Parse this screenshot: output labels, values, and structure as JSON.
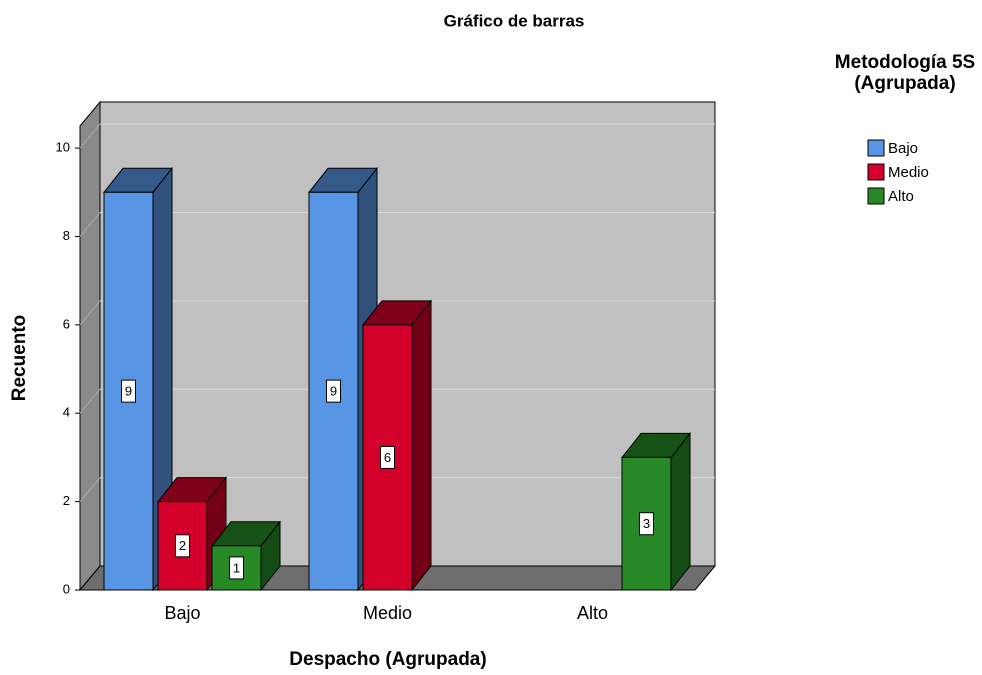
{
  "chart_data": {
    "type": "bar3d",
    "title": "Gráfico de barras",
    "x_label": "Despacho (Agrupada)",
    "y_label": "Recuento",
    "legend_title": "Metodología 5S (Agrupada)",
    "legend_position": "upper right",
    "categories": [
      "Bajo",
      "Medio",
      "Alto"
    ],
    "series": [
      {
        "name": "Bajo",
        "color": "#5895e4",
        "values": [
          9,
          9,
          null
        ]
      },
      {
        "name": "Medio",
        "color": "#d2002b",
        "values": [
          2,
          6,
          null
        ]
      },
      {
        "name": "Alto",
        "color": "#278a27",
        "values": [
          1,
          null,
          3
        ]
      }
    ],
    "ylim": [
      0,
      10.5
    ],
    "yticks": [
      0,
      2,
      4,
      6,
      8,
      10
    ],
    "grid": true
  }
}
